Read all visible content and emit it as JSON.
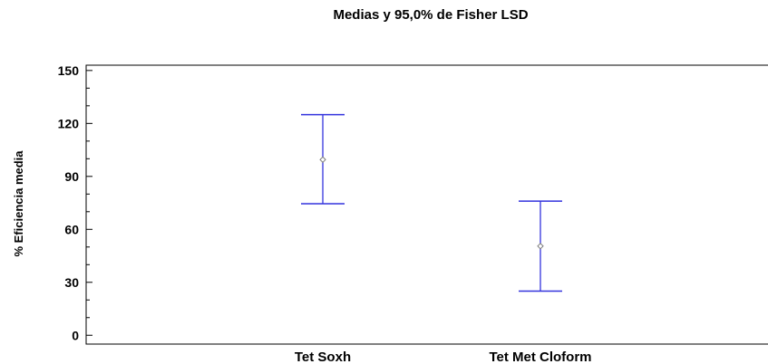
{
  "chart_data": {
    "type": "interval",
    "title": "Medias y 95,0% de Fisher LSD",
    "xlabel": "",
    "ylabel": "% Eficiencia  media",
    "ylim": [
      -5,
      153
    ],
    "yticks": [
      0,
      30,
      60,
      90,
      120,
      150
    ],
    "categories": [
      "Tet Soxh",
      "Tet Met Cloform"
    ],
    "series": [
      {
        "means": [
          99.5,
          50.5
        ],
        "lower": [
          74.5,
          25.0
        ],
        "upper": [
          125.0,
          76.0
        ]
      }
    ],
    "grid": false,
    "colors": {
      "interval": "#3333dd",
      "mean_marker": "#777777",
      "axis": "#000000"
    }
  }
}
